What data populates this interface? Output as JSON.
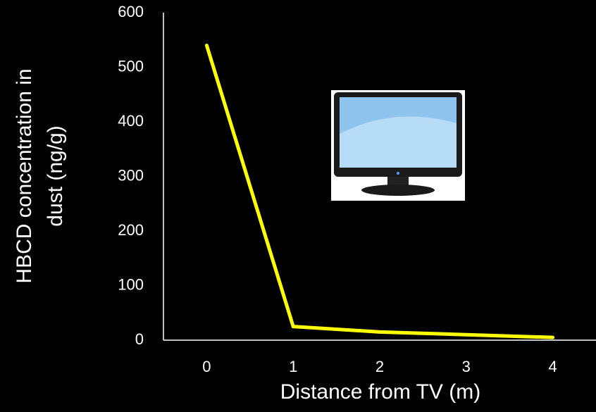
{
  "chart_data": {
    "type": "line",
    "xlabel": "Distance from TV (m)",
    "ylabel": [
      "HBCD concentration in",
      "dust (ng/g)"
    ],
    "x": [
      0,
      1,
      2,
      3,
      4
    ],
    "series": [
      {
        "color": "#ffff00",
        "values": [
          540,
          25,
          15,
          10,
          5
        ]
      }
    ],
    "xlim": [
      -0.5,
      4.5
    ],
    "xticks": [
      0,
      1,
      2,
      3,
      4
    ],
    "ylim": [
      0,
      600
    ],
    "yticks": [
      0,
      100,
      200,
      300,
      400,
      500,
      600
    ],
    "grid": false
  }
}
